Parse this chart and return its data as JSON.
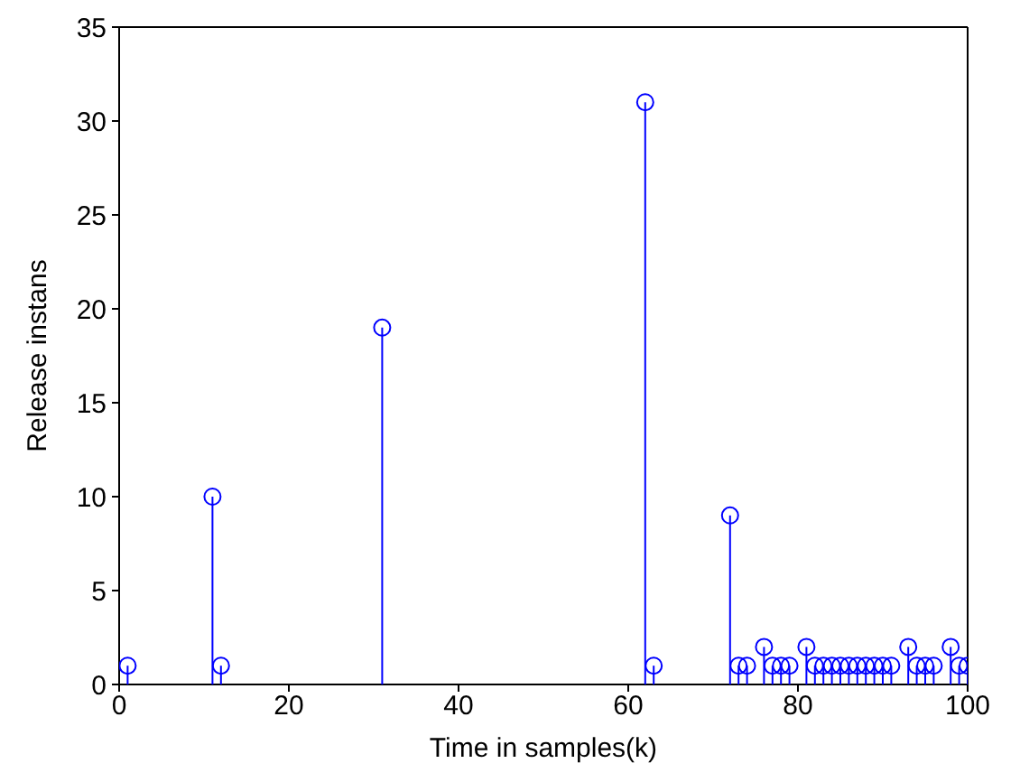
{
  "chart_data": {
    "type": "lollipop",
    "xlabel": "Time in samples(k)",
    "ylabel": "Release instans",
    "x": [
      1,
      11,
      12,
      31,
      62,
      63,
      72,
      73,
      74,
      76,
      77,
      78,
      79,
      81,
      82,
      83,
      84,
      85,
      86,
      87,
      88,
      89,
      90,
      91,
      93,
      94,
      95,
      96,
      98,
      99,
      100
    ],
    "values": [
      1,
      10,
      1,
      19,
      31,
      1,
      9,
      1,
      1,
      2,
      1,
      1,
      1,
      2,
      1,
      1,
      1,
      1,
      1,
      1,
      1,
      1,
      1,
      1,
      2,
      1,
      1,
      1,
      2,
      1,
      1
    ],
    "color": "#0000ff",
    "marker": "circle",
    "grid": false,
    "legend": false,
    "xlim": [
      0,
      100
    ],
    "xticks": [
      0,
      20,
      40,
      60,
      80,
      100
    ],
    "ylim": [
      0,
      35
    ],
    "yticks": [
      0,
      5,
      10,
      15,
      20,
      25,
      30,
      35
    ]
  }
}
